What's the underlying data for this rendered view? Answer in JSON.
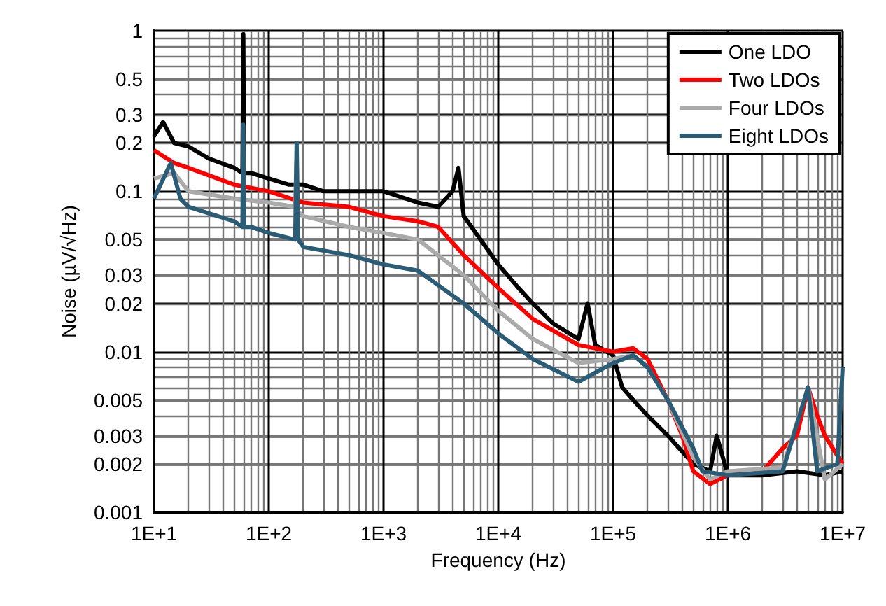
{
  "chart_data": {
    "type": "line",
    "xlabel": "Frequency (Hz)",
    "ylabel": "Noise (µV/√Hz)",
    "log": "xy",
    "grid": true,
    "legend": "top right",
    "marker": "none",
    "line_style": "solid",
    "xlim": [
      10,
      10000000
    ],
    "ylim": [
      0.001,
      1
    ],
    "xticks": [
      {
        "value": 10,
        "label": "1E+1"
      },
      {
        "value": 100,
        "label": "1E+2"
      },
      {
        "value": 1000,
        "label": "1E+3"
      },
      {
        "value": 10000,
        "label": "1E+4"
      },
      {
        "value": 100000,
        "label": "1E+5"
      },
      {
        "value": 1000000,
        "label": "1E+6"
      },
      {
        "value": 10000000,
        "label": "1E+7"
      }
    ],
    "yticks": [
      0.001,
      0.002,
      0.003,
      0.005,
      0.01,
      0.02,
      0.03,
      0.05,
      0.1,
      0.2,
      0.3,
      0.5,
      1
    ],
    "series": [
      {
        "name": "One LDO",
        "color": "#000000",
        "x": [
          10,
          12,
          15,
          20,
          30,
          50,
          59,
          60,
          61,
          70,
          100,
          150,
          200,
          300,
          500,
          1000,
          2000,
          3000,
          4000,
          4500,
          5000,
          7000,
          10000,
          15000,
          20000,
          30000,
          50000,
          60000,
          70000,
          100000,
          120000,
          150000,
          200000,
          300000,
          500000,
          700000,
          800000,
          1000000,
          2000000,
          4000000,
          7000000,
          10000000
        ],
        "values": [
          0.22,
          0.27,
          0.2,
          0.19,
          0.16,
          0.14,
          0.13,
          0.95,
          0.13,
          0.13,
          0.12,
          0.11,
          0.11,
          0.1,
          0.1,
          0.1,
          0.085,
          0.08,
          0.1,
          0.14,
          0.07,
          0.05,
          0.035,
          0.025,
          0.02,
          0.015,
          0.012,
          0.02,
          0.011,
          0.0095,
          0.006,
          0.005,
          0.004,
          0.003,
          0.002,
          0.0018,
          0.003,
          0.0017,
          0.0017,
          0.0018,
          0.0017,
          0.0018
        ]
      },
      {
        "name": "Two LDOs",
        "color": "#ff0000",
        "x": [
          10,
          15,
          20,
          50,
          100,
          200,
          500,
          1000,
          2000,
          3000,
          5000,
          10000,
          20000,
          50000,
          100000,
          150000,
          200000,
          300000,
          400000,
          500000,
          700000,
          1000000,
          2000000,
          3000000,
          4000000,
          5000000,
          6000000,
          7000000,
          10000000
        ],
        "values": [
          0.18,
          0.15,
          0.14,
          0.11,
          0.1,
          0.085,
          0.08,
          0.07,
          0.065,
          0.06,
          0.04,
          0.025,
          0.016,
          0.011,
          0.01,
          0.0105,
          0.009,
          0.005,
          0.003,
          0.0018,
          0.0015,
          0.0017,
          0.0018,
          0.0025,
          0.003,
          0.006,
          0.004,
          0.003,
          0.002
        ]
      },
      {
        "name": "Four LDOs",
        "color": "#aaaaaa",
        "x": [
          10,
          15,
          20,
          50,
          100,
          170,
          174,
          178,
          200,
          500,
          1000,
          2000,
          5000,
          10000,
          20000,
          50000,
          100000,
          150000,
          200000,
          300000,
          500000,
          700000,
          1000000,
          3000000,
          5000000,
          7000000,
          10000000
        ],
        "values": [
          0.12,
          0.13,
          0.1,
          0.09,
          0.085,
          0.08,
          0.15,
          0.075,
          0.07,
          0.06,
          0.055,
          0.05,
          0.03,
          0.018,
          0.012,
          0.0085,
          0.009,
          0.0095,
          0.008,
          0.005,
          0.0022,
          0.0016,
          0.0018,
          0.0019,
          0.006,
          0.0016,
          0.002
        ]
      },
      {
        "name": "Eight LDOs",
        "color": "#2a5c75",
        "x": [
          10,
          14,
          17,
          20,
          50,
          59,
          60,
          61,
          70,
          100,
          170,
          175,
          180,
          200,
          500,
          1000,
          2000,
          5000,
          10000,
          20000,
          50000,
          100000,
          150000,
          200000,
          300000,
          500000,
          600000,
          1000000,
          3000000,
          5000000,
          6000000,
          9000000,
          10000000
        ],
        "values": [
          0.09,
          0.15,
          0.09,
          0.08,
          0.065,
          0.06,
          0.26,
          0.06,
          0.06,
          0.055,
          0.05,
          0.2,
          0.05,
          0.045,
          0.04,
          0.035,
          0.032,
          0.02,
          0.013,
          0.009,
          0.0065,
          0.0085,
          0.0095,
          0.008,
          0.005,
          0.0025,
          0.0018,
          0.0017,
          0.0018,
          0.006,
          0.0018,
          0.002,
          0.008
        ]
      }
    ]
  }
}
